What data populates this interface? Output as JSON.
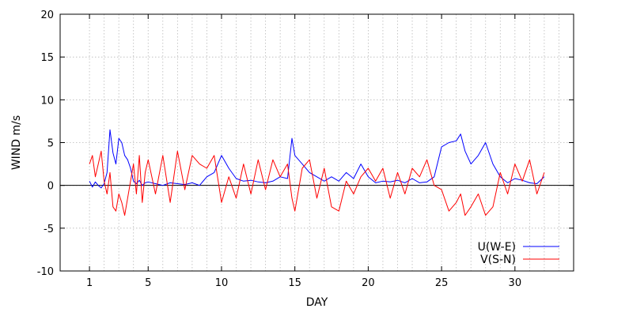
{
  "chart_data": {
    "type": "line",
    "xlabel": "DAY",
    "ylabel": "WIND m/s",
    "xlim": [
      -1,
      34
    ],
    "ylim": [
      -10,
      20
    ],
    "xticks": [
      1,
      5,
      10,
      15,
      20,
      25,
      30
    ],
    "x_minor_grid": [
      2,
      3,
      4,
      6,
      7,
      8,
      9,
      11,
      12,
      13,
      14,
      16,
      17,
      18,
      19,
      21,
      22,
      23,
      24,
      26,
      27,
      28,
      29,
      31,
      32,
      33
    ],
    "yticks": [
      -10,
      -5,
      0,
      5,
      10,
      15,
      20
    ],
    "grid": true,
    "zero_line": true,
    "legend_position": "bottom-right",
    "series": [
      {
        "name": "U(W-E)",
        "color": "#0000ff",
        "x": [
          1.0,
          1.2,
          1.4,
          1.6,
          1.8,
          2.0,
          2.2,
          2.4,
          2.6,
          2.8,
          3.0,
          3.2,
          3.4,
          3.6,
          3.8,
          4.0,
          4.2,
          4.4,
          4.6,
          4.8,
          5.0,
          5.5,
          6.0,
          6.5,
          7.0,
          7.5,
          8.0,
          8.5,
          9.0,
          9.5,
          10.0,
          10.5,
          11.0,
          11.5,
          12.0,
          12.5,
          13.0,
          13.5,
          14.0,
          14.5,
          14.8,
          15.0,
          15.5,
          16.0,
          16.5,
          17.0,
          17.5,
          18.0,
          18.5,
          19.0,
          19.5,
          20.0,
          20.5,
          21.0,
          21.5,
          22.0,
          22.5,
          23.0,
          23.5,
          24.0,
          24.5,
          25.0,
          25.5,
          26.0,
          26.3,
          26.6,
          27.0,
          27.5,
          28.0,
          28.5,
          29.0,
          29.5,
          30.0,
          30.5,
          31.0,
          31.5,
          32.0
        ],
        "y": [
          0.5,
          -0.2,
          0.4,
          0.0,
          -0.3,
          0.2,
          1.5,
          6.5,
          3.8,
          2.5,
          5.5,
          5.0,
          3.5,
          3.0,
          2.0,
          0.5,
          0.2,
          0.6,
          0.0,
          0.3,
          0.4,
          0.2,
          0.0,
          0.3,
          0.2,
          0.1,
          0.3,
          0.0,
          1.0,
          1.5,
          3.5,
          2.0,
          0.8,
          0.5,
          0.6,
          0.4,
          0.3,
          0.5,
          1.0,
          0.8,
          5.5,
          3.5,
          2.5,
          1.5,
          1.0,
          0.5,
          1.0,
          0.5,
          1.5,
          0.8,
          2.5,
          1.0,
          0.3,
          0.5,
          0.4,
          0.6,
          0.3,
          0.8,
          0.3,
          0.4,
          1.0,
          4.5,
          5.0,
          5.2,
          6.0,
          4.0,
          2.5,
          3.5,
          5.0,
          2.5,
          1.0,
          0.3,
          0.8,
          0.6,
          0.3,
          0.2,
          1.0
        ]
      },
      {
        "name": "V(S-N)",
        "color": "#ff0000",
        "x": [
          1.0,
          1.2,
          1.4,
          1.6,
          1.8,
          2.0,
          2.2,
          2.4,
          2.6,
          2.8,
          3.0,
          3.2,
          3.4,
          3.6,
          3.8,
          4.0,
          4.2,
          4.4,
          4.6,
          4.8,
          5.0,
          5.5,
          6.0,
          6.5,
          7.0,
          7.5,
          8.0,
          8.5,
          9.0,
          9.5,
          10.0,
          10.5,
          11.0,
          11.5,
          12.0,
          12.5,
          13.0,
          13.5,
          14.0,
          14.5,
          14.8,
          15.0,
          15.5,
          16.0,
          16.5,
          17.0,
          17.5,
          18.0,
          18.5,
          19.0,
          19.5,
          20.0,
          20.5,
          21.0,
          21.5,
          22.0,
          22.5,
          23.0,
          23.5,
          24.0,
          24.5,
          25.0,
          25.5,
          26.0,
          26.3,
          26.6,
          27.0,
          27.5,
          28.0,
          28.5,
          29.0,
          29.5,
          30.0,
          30.5,
          31.0,
          31.5,
          32.0
        ],
        "y": [
          2.5,
          3.5,
          1.0,
          2.5,
          4.0,
          0.5,
          -1.0,
          1.5,
          -2.5,
          -3.0,
          -1.0,
          -2.0,
          -3.5,
          -1.5,
          0.5,
          2.5,
          -1.0,
          3.5,
          -2.0,
          1.5,
          3.0,
          -1.0,
          3.5,
          -2.0,
          4.0,
          -0.5,
          3.5,
          2.5,
          2.0,
          3.5,
          -2.0,
          1.0,
          -1.5,
          2.5,
          -1.0,
          3.0,
          -0.5,
          3.0,
          1.0,
          2.5,
          -1.5,
          -3.0,
          2.0,
          3.0,
          -1.5,
          2.0,
          -2.5,
          -3.0,
          0.5,
          -1.0,
          1.0,
          2.0,
          0.5,
          2.0,
          -1.5,
          1.5,
          -1.0,
          2.0,
          1.0,
          3.0,
          0.0,
          -0.5,
          -3.0,
          -2.0,
          -1.0,
          -3.5,
          -2.5,
          -1.0,
          -3.5,
          -2.5,
          1.5,
          -1.0,
          2.5,
          0.5,
          3.0,
          -1.0,
          1.5
        ]
      }
    ]
  }
}
